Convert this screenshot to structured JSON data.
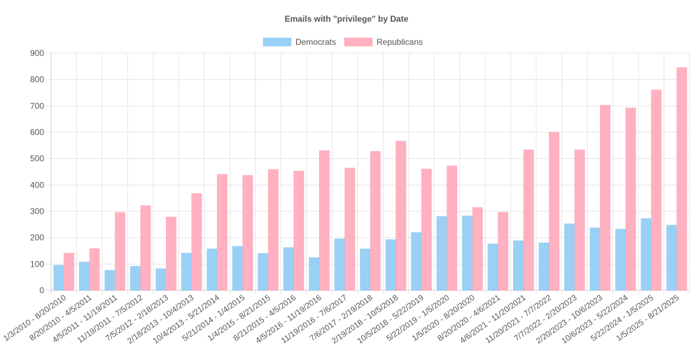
{
  "chart_data": {
    "type": "bar",
    "title": "Emails with \"privilege\" by Date",
    "xlabel": "",
    "ylabel": "",
    "ylim": [
      0,
      900
    ],
    "yticks": [
      0,
      100,
      200,
      300,
      400,
      500,
      600,
      700,
      800,
      900
    ],
    "grid": true,
    "legend_position": "top-center",
    "categories": [
      "1/3/2010 - 8/20/2010",
      "8/20/2010 - 4/5/2011",
      "4/5/2011 - 11/19/2011",
      "11/19/2011 - 7/5/2012",
      "7/5/2012 - 2/18/2013",
      "2/18/2013 - 10/4/2013",
      "10/4/2013 - 5/21/2014",
      "5/21/2014 - 1/4/2015",
      "1/4/2015 - 8/21/2015",
      "8/21/2015 - 4/5/2016",
      "4/5/2016 - 11/19/2016",
      "11/19/2016 - 7/6/2017",
      "7/6/2017 - 2/19/2018",
      "2/19/2018 - 10/5/2018",
      "10/5/2018 - 5/22/2019",
      "5/22/2019 - 1/5/2020",
      "1/5/2020 - 8/20/2020",
      "8/20/2020 - 4/6/2021",
      "4/6/2021 - 11/20/2021",
      "11/20/2021 - 7/7/2022",
      "7/7/2022 - 2/20/2023",
      "2/20/2023 - 10/6/2023",
      "10/6/2023 - 5/22/2024",
      "5/22/2024 - 1/5/2025",
      "1/5/2025 - 8/21/2025"
    ],
    "series": [
      {
        "name": "Democrats",
        "color": "#9ad0f5",
        "values": [
          96,
          108,
          77,
          92,
          83,
          142,
          158,
          168,
          141,
          163,
          125,
          196,
          158,
          193,
          220,
          281,
          283,
          177,
          189,
          181,
          253,
          238,
          233,
          273,
          248
        ]
      },
      {
        "name": "Republicans",
        "color": "#ffb1c1",
        "values": [
          142,
          159,
          296,
          322,
          279,
          368,
          441,
          437,
          459,
          453,
          531,
          465,
          528,
          567,
          461,
          473,
          315,
          297,
          534,
          601,
          534,
          703,
          693,
          761,
          846
        ]
      }
    ]
  }
}
